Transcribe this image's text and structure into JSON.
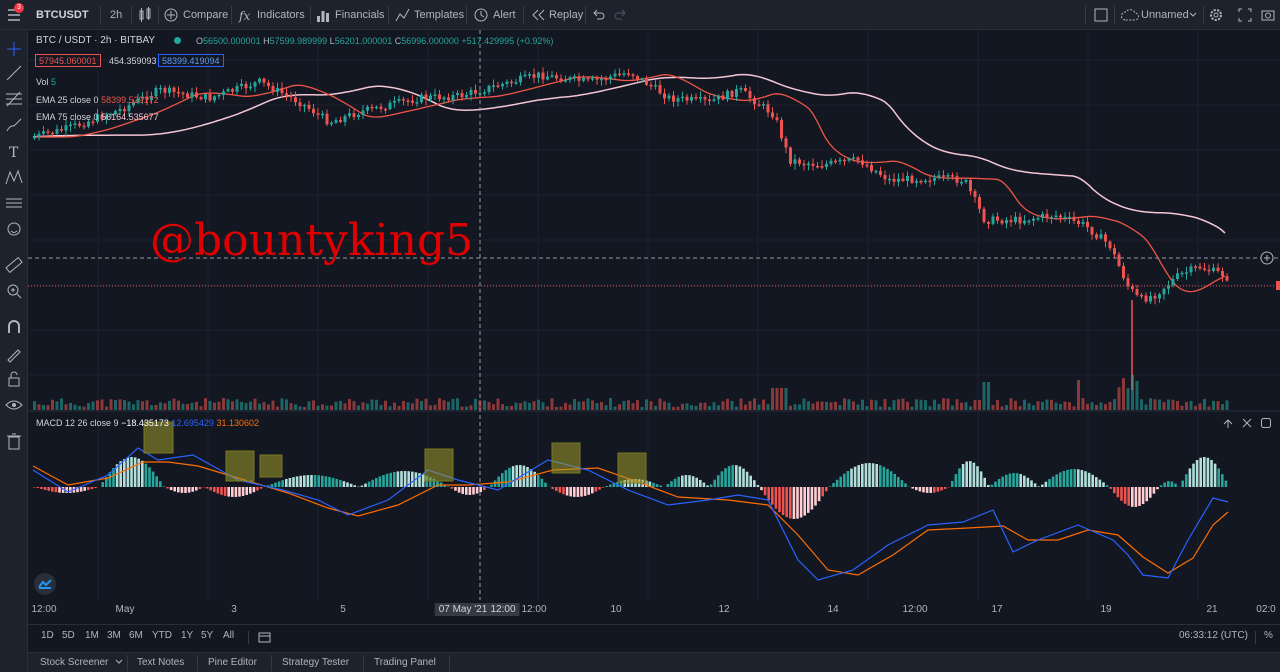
{
  "toolbar": {
    "symbol": "BTCUSDT",
    "interval": "2h",
    "compare": "Compare",
    "indicators": "Indicators",
    "financials": "Financials",
    "templates": "Templates",
    "alert": "Alert",
    "replay": "Replay",
    "layout_name": "Unnamed",
    "notification_count": "3"
  },
  "legend": {
    "title": "BTC / USDT · 2h · BITBAY",
    "ohlc": {
      "o": "56500.000001",
      "h": "57599.989999",
      "l": "56201.000001",
      "c": "56996.000000",
      "chg": "+517.429995 (+0.92%)"
    },
    "bid": "57945.060001",
    "spread": "454.359093",
    "ask": "58399.419094",
    "vol_label": "Vol",
    "vol_value": "5",
    "ema25_label": "EMA 25 close 0",
    "ema25_value": "58399.529172",
    "ema75_label": "EMA 75 close 0",
    "ema75_value": "56164.535677"
  },
  "macd": {
    "label": "MACD 12 26 close 9",
    "hist": "−18.435173",
    "macd": "12.695429",
    "signal": "31.130602"
  },
  "watermark": "@bountyking5",
  "time_axis": {
    "labels": [
      "12:00",
      "May",
      "3",
      "5",
      "07 May '21",
      "12:00",
      "12:00",
      "10",
      "12",
      "14",
      "12:00",
      "17",
      "19",
      "21",
      "02:0"
    ]
  },
  "ranges": [
    "1D",
    "5D",
    "1M",
    "3M",
    "6M",
    "YTD",
    "1Y",
    "5Y",
    "All"
  ],
  "clock": "06:33:12 (UTC)",
  "bottom_tabs": [
    "Stock Screener",
    "Text Notes",
    "Pine Editor",
    "Strategy Tester",
    "Trading Panel"
  ],
  "colors": {
    "background": "#131722",
    "up": "#26a69a",
    "down": "#ef5350",
    "ema25": "#f05545",
    "ema75": "#f5c6d4",
    "macd_line": "#2962ff",
    "signal_line": "#ff6d00",
    "watermark": "#e00000",
    "highlight_box": "#9e9b2a"
  }
}
